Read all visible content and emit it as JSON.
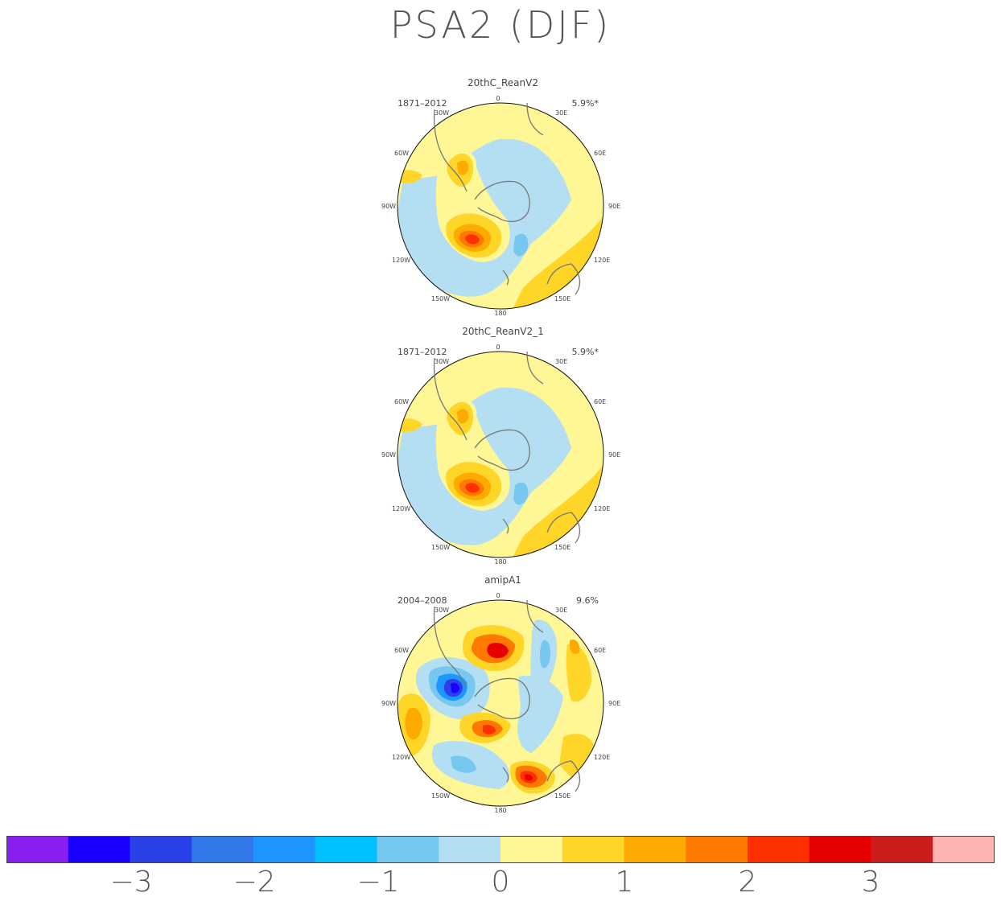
{
  "title": "PSA2 (DJF)",
  "panels": [
    {
      "name": "20thC_ReanV2",
      "period": "1871–2012",
      "pct": "5.9%*"
    },
    {
      "name": "20thC_ReanV2_1",
      "period": "1871–2012",
      "pct": "5.9%*"
    },
    {
      "name": "amipA1",
      "period": "2004–2008",
      "pct": "9.6%"
    }
  ],
  "map_labels": [
    "0",
    "30E",
    "60E",
    "90E",
    "120E",
    "150E",
    "180",
    "150W",
    "120W",
    "90W",
    "60W",
    "30W"
  ],
  "colorbar": {
    "colors": [
      "#8a1ff2",
      "#1a00ff",
      "#2a40e8",
      "#3278ea",
      "#1e96ff",
      "#00bfff",
      "#76c8f0",
      "#b4def2",
      "#fff796",
      "#ffd528",
      "#ffaa00",
      "#ff7800",
      "#ff3000",
      "#e60000",
      "#cd1c1c",
      "#ffb4b4"
    ],
    "tick_labels": [
      "−3",
      "−2",
      "−1",
      "0",
      "1",
      "2",
      "3"
    ]
  }
}
